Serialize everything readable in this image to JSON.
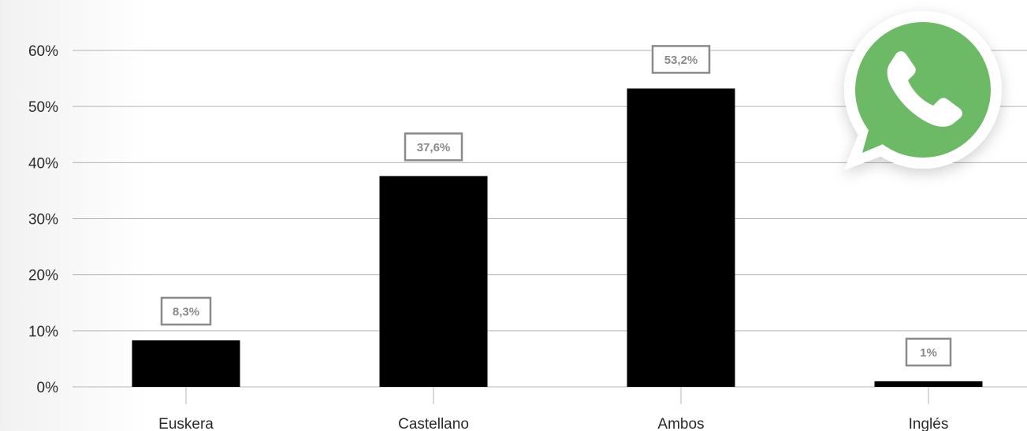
{
  "chart_data": {
    "type": "bar",
    "categories": [
      "Euskera",
      "Castellano",
      "Ambos",
      "Inglés"
    ],
    "values": [
      8.3,
      37.6,
      53.2,
      1
    ],
    "data_labels": [
      "8,3%",
      "37,6%",
      "53,2%",
      "1%"
    ],
    "y_ticks": [
      0,
      10,
      20,
      30,
      40,
      50,
      60
    ],
    "y_tick_labels": [
      "0%",
      "10%",
      "20%",
      "30%",
      "40%",
      "50%",
      "60%"
    ],
    "ylim": [
      0,
      60
    ],
    "grid": true,
    "title": "",
    "xlabel": "",
    "ylabel": "",
    "colors": {
      "bar": "#000000",
      "grid": "#b5b5b5",
      "label_box": "#8a8a8a",
      "whatsapp_green": "#6dba66"
    }
  },
  "logo": {
    "icon": "whatsapp-icon"
  }
}
